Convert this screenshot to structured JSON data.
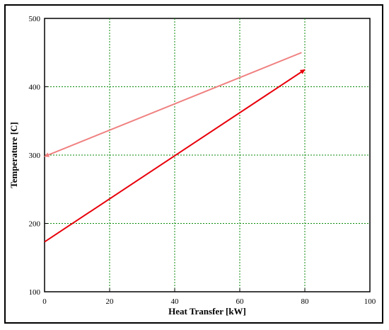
{
  "chart_data": {
    "type": "line",
    "title": "",
    "xlabel": "Heat Transfer [kW]",
    "ylabel": "Temperature [C]",
    "xlim": [
      0,
      100
    ],
    "ylim": [
      100,
      500
    ],
    "xticks": [
      0,
      20,
      40,
      60,
      80,
      100
    ],
    "yticks": [
      100,
      200,
      300,
      400,
      500
    ],
    "grid": true,
    "series": [
      {
        "x": [
          0,
          79
        ],
        "y": [
          298,
          450
        ],
        "color": "#f08080",
        "arrow": "start"
      },
      {
        "x": [
          0,
          80
        ],
        "y": [
          173,
          425
        ],
        "color": "#e8000b",
        "arrow": "end"
      }
    ]
  }
}
